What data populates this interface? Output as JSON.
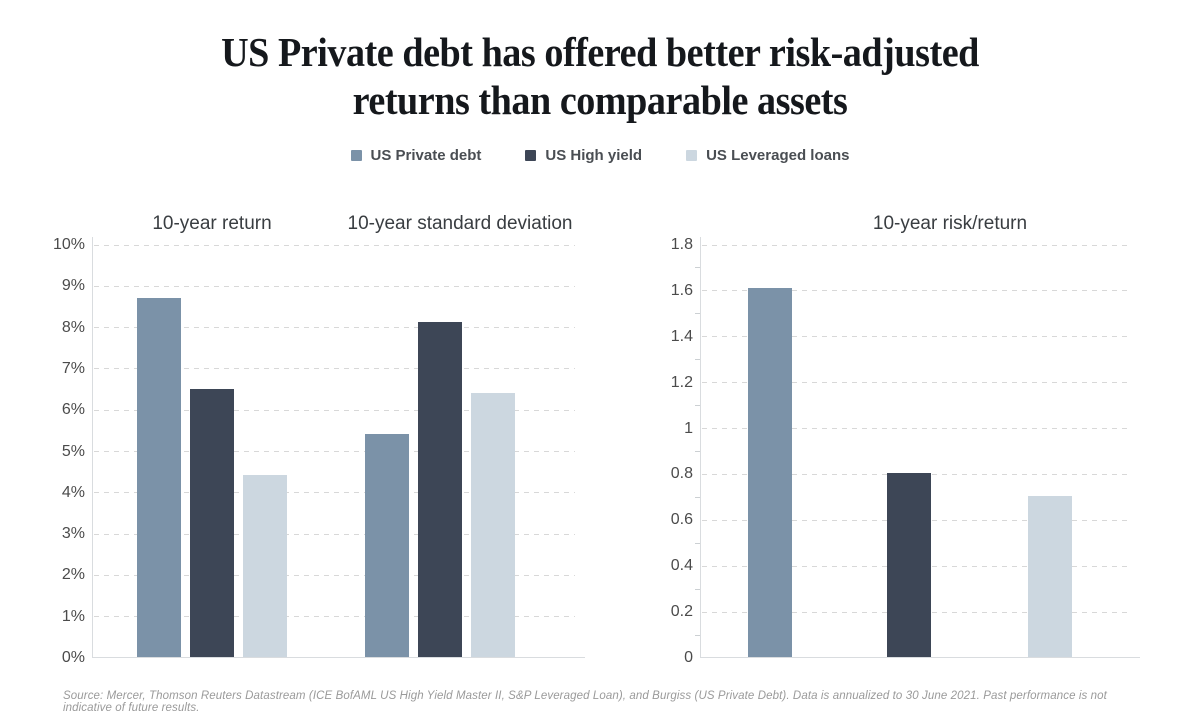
{
  "title": {
    "line1": "US Private debt has offered better risk-adjusted",
    "line2": "returns than comparable assets"
  },
  "legend": {
    "items": [
      {
        "label": "US Private debt",
        "color": "#7b92a8"
      },
      {
        "label": "US High yield",
        "color": "#3d4656"
      },
      {
        "label": "US Leveraged loans",
        "color": "#ccd7e0"
      }
    ]
  },
  "chart_data": [
    {
      "type": "bar",
      "title": "10-year return",
      "categories": [
        "US Private debt",
        "US High yield",
        "US Leveraged loans"
      ],
      "values": [
        8.7,
        6.5,
        4.4
      ],
      "unit": "%",
      "ylim": [
        0,
        10
      ],
      "ytick_step": 1,
      "grid": "horizontal dashed",
      "legend_position": "top"
    },
    {
      "type": "bar",
      "title": "10-year standard deviation",
      "categories": [
        "US Private debt",
        "US High yield",
        "US Leveraged loans"
      ],
      "values": [
        5.4,
        8.1,
        6.4
      ],
      "unit": "%",
      "ylim": [
        0,
        10
      ],
      "ytick_step": 1,
      "grid": "horizontal dashed",
      "shares_axis_with": "10-year return"
    },
    {
      "type": "bar",
      "title": "10-year risk/return",
      "categories": [
        "US Private debt",
        "US High yield",
        "US Leveraged loans"
      ],
      "values": [
        1.61,
        0.8,
        0.7
      ],
      "unit": "",
      "ylim": [
        0,
        1.8
      ],
      "ytick_step": 0.2,
      "grid": "horizontal dashed"
    }
  ],
  "footer": "Source: Mercer, Thomson Reuters Datastream (ICE BofAML US High Yield Master II, S&P Leveraged Loan), and Burgiss (US Private Debt). Data is annualized to 30 June 2021. Past performance is not indicative of future results."
}
